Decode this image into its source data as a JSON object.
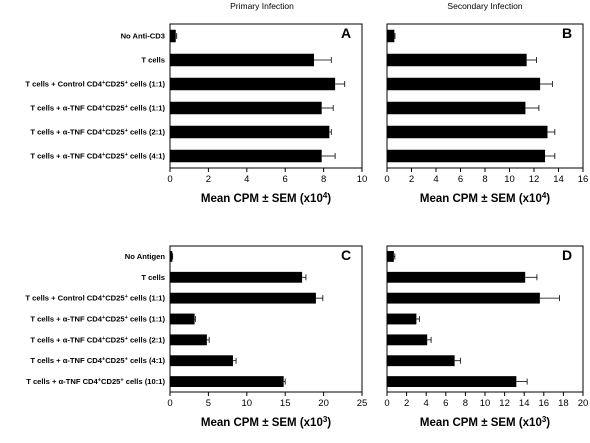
{
  "columns": {
    "primary": "Primary Infection",
    "secondary": "Secondary Infection"
  },
  "chart_data": [
    {
      "type": "bar",
      "orientation": "horizontal",
      "panel": "A",
      "categories": [
        "No Anti-CD3",
        "T cells",
        "T cells + Control CD4+CD25+ cells (1:1)",
        "T cells + α-TNF CD4+CD25+ cells (1:1)",
        "T cells + α-TNF CD4+CD25+ cells (2:1)",
        "T cells + α-TNF CD4+CD25+ cells (4:1)"
      ],
      "values": [
        0.3,
        7.5,
        8.6,
        7.9,
        8.3,
        7.9
      ],
      "errors": [
        0.05,
        0.9,
        0.5,
        0.6,
        0.1,
        0.7
      ],
      "xlabel": "Mean CPM ± SEM (x10⁴)",
      "xlim": [
        0,
        10
      ],
      "xticks": [
        0,
        2,
        4,
        6,
        8,
        10
      ],
      "grid": false
    },
    {
      "type": "bar",
      "orientation": "horizontal",
      "panel": "B",
      "categories": [
        "No Anti-CD3",
        "T cells",
        "T cells + Control CD4+CD25+ cells (1:1)",
        "T cells + α-TNF CD4+CD25+ cells (1:1)",
        "T cells + α-TNF CD4+CD25+ cells (2:1)",
        "T cells + α-TNF CD4+CD25+ cells (4:1)"
      ],
      "values": [
        0.6,
        11.4,
        12.5,
        11.3,
        13.1,
        12.9
      ],
      "errors": [
        0.05,
        0.8,
        1.0,
        1.1,
        0.6,
        0.8
      ],
      "xlabel": "Mean CPM ± SEM (x10⁴)",
      "xlim": [
        0,
        16
      ],
      "xticks": [
        0,
        2,
        4,
        6,
        8,
        10,
        12,
        14,
        16
      ],
      "grid": false
    },
    {
      "type": "bar",
      "orientation": "horizontal",
      "panel": "C",
      "categories": [
        "No Antigen",
        "T cells",
        "T cells + Control CD4+CD25+ cells (1:1)",
        "T cells + α-TNF CD4+CD25+ cells (1:1)",
        "T cells + α-TNF CD4+CD25+ cells (2:1)",
        "T cells + α-TNF CD4+CD25+ cells (4:1)",
        "T cells + α-TNF CD4+CD25+ cells (10:1)"
      ],
      "values": [
        0.3,
        17.2,
        19.0,
        3.2,
        4.8,
        8.2,
        14.8
      ],
      "errors": [
        0.05,
        0.5,
        0.9,
        0.1,
        0.3,
        0.4,
        0.2
      ],
      "xlabel": "Mean CPM ± SEM (x10³)",
      "xlim": [
        0,
        25
      ],
      "xticks": [
        0,
        5,
        10,
        15,
        20,
        25
      ],
      "grid": false
    },
    {
      "type": "bar",
      "orientation": "horizontal",
      "panel": "D",
      "categories": [
        "No Antigen",
        "T cells",
        "T cells + Control CD4+CD25+ cells (1:1)",
        "T cells + α-TNF CD4+CD25+ cells (1:1)",
        "T cells + α-TNF CD4+CD25+ cells (2:1)",
        "T cells + α-TNF CD4+CD25+ cells (4:1)",
        "T cells + α-TNF CD4+CD25+ cells (10:1)"
      ],
      "values": [
        0.7,
        14.1,
        15.6,
        3.0,
        4.1,
        6.9,
        13.2
      ],
      "errors": [
        0.1,
        1.2,
        2.0,
        0.3,
        0.4,
        0.6,
        1.1
      ],
      "xlabel": "Mean CPM ± SEM (x10³)",
      "xlim": [
        0,
        20
      ],
      "xticks": [
        0,
        2,
        4,
        6,
        8,
        10,
        12,
        14,
        16,
        18,
        20
      ],
      "grid": false
    }
  ]
}
